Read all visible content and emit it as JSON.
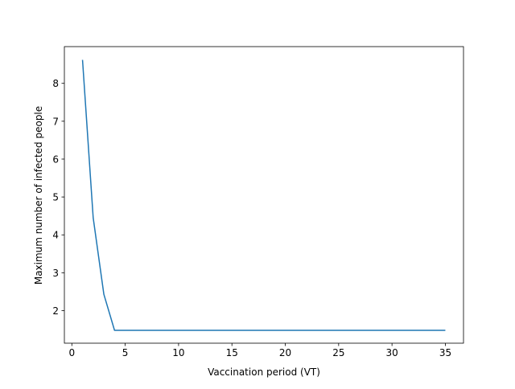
{
  "chart_data": {
    "type": "line",
    "title": "",
    "xlabel": "Vaccination period (VT)",
    "ylabel": "Maximum number of infected people",
    "xlim": [
      -0.7,
      36.7
    ],
    "ylim": [
      1.14,
      8.97
    ],
    "x_ticks": [
      0,
      5,
      10,
      15,
      20,
      25,
      30,
      35
    ],
    "y_ticks": [
      2,
      3,
      4,
      5,
      6,
      7,
      8
    ],
    "x_tick_labels": [
      "0",
      "5",
      "10",
      "15",
      "20",
      "25",
      "30",
      "35"
    ],
    "y_tick_labels": [
      "2",
      "3",
      "4",
      "5",
      "6",
      "7",
      "8"
    ],
    "grid": false,
    "legend": "none",
    "series": [
      {
        "color": "#1f77b4",
        "x": [
          1,
          2,
          3,
          4,
          5,
          6,
          7,
          8,
          9,
          10,
          11,
          12,
          13,
          14,
          15,
          16,
          17,
          18,
          19,
          20,
          21,
          22,
          23,
          24,
          25,
          26,
          27,
          28,
          29,
          30,
          31,
          32,
          33,
          34,
          35
        ],
        "y": [
          8.62,
          4.45,
          2.43,
          1.48,
          1.48,
          1.48,
          1.48,
          1.48,
          1.48,
          1.48,
          1.48,
          1.48,
          1.48,
          1.48,
          1.48,
          1.48,
          1.48,
          1.48,
          1.48,
          1.48,
          1.48,
          1.48,
          1.48,
          1.48,
          1.48,
          1.48,
          1.48,
          1.48,
          1.48,
          1.48,
          1.48,
          1.48,
          1.48,
          1.48,
          1.48
        ]
      }
    ]
  }
}
